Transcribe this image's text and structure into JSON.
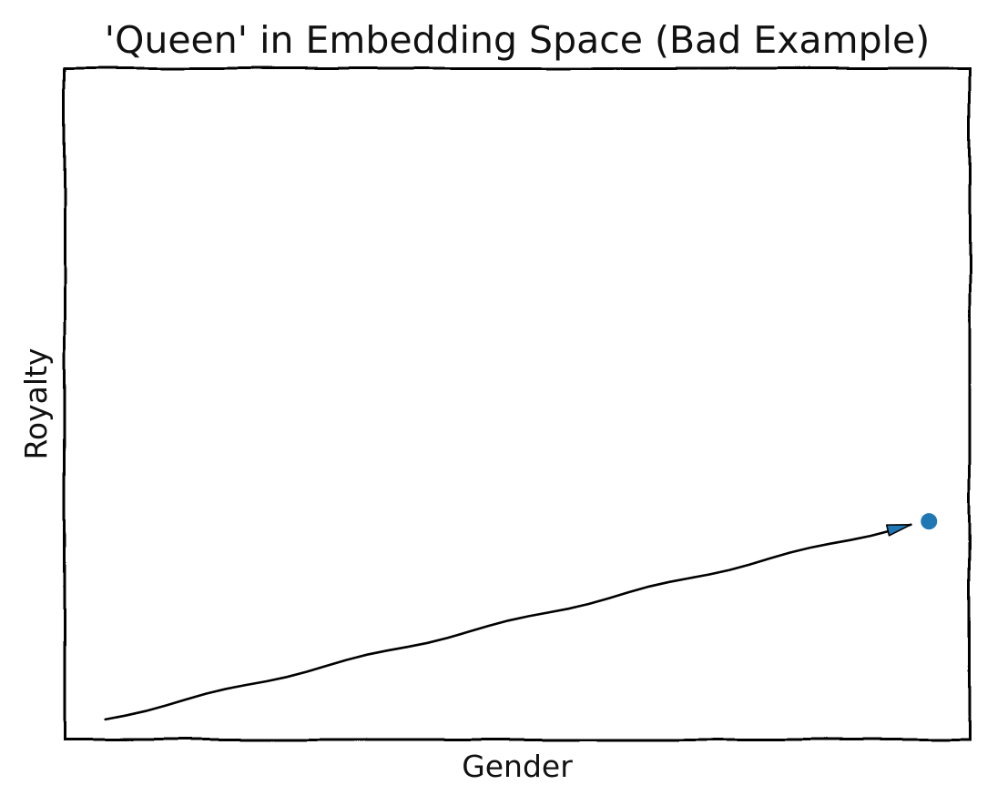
{
  "chart_data": {
    "type": "scatter",
    "title": "'Queen' in Embedding Space (Bad Example)",
    "xlabel": "Gender",
    "ylabel": "Royalty",
    "xticks": [],
    "yticks": [],
    "grid": false,
    "legend": "none",
    "style": "xkcd",
    "xlim": [
      0,
      1
    ],
    "ylim": [
      0,
      1
    ],
    "points": [
      {
        "x": 0.955,
        "y": 0.325
      }
    ],
    "arrow": {
      "from": {
        "x": 0.045,
        "y": 0.03
      },
      "to": {
        "x": 0.935,
        "y": 0.32
      }
    },
    "colors": {
      "point": "#1f77b4",
      "arrow": "#000000",
      "frame": "#000000"
    }
  }
}
